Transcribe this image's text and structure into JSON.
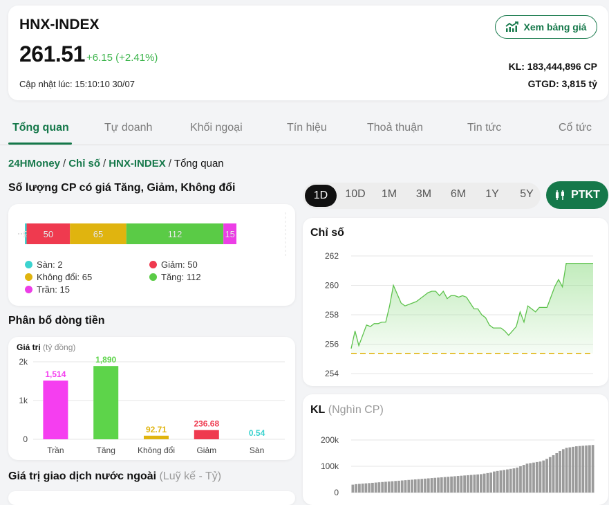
{
  "header": {
    "index_name": "HNX-INDEX",
    "value": "261.51",
    "change": "+6.15 (+2.41%)",
    "updated": "Cập nhật lúc: 15:10:10 30/07",
    "price_board_button": "Xem bảng giá",
    "volume": "KL: 183,444,896 CP",
    "value_traded": "GTGD: 3,815 tỷ"
  },
  "tabs": [
    "Tổng quan",
    "Tự doanh",
    "Khối ngoại",
    "Tín hiệu",
    "Thoả thuận",
    "Tin tức",
    "Cổ tức"
  ],
  "breadcrumb": {
    "items": [
      "24HMoney",
      "Chỉ số",
      "HNX-INDEX"
    ],
    "current": "Tổng quan"
  },
  "breadth": {
    "title": "Số lượng CP có giá Tăng, Giảm, Không đổi",
    "segments": [
      {
        "key": "san",
        "label": "Sàn",
        "count": 2,
        "color": "#3cd3cf"
      },
      {
        "key": "giam",
        "label": "Giảm",
        "count": 50,
        "color": "#ef3a4f"
      },
      {
        "key": "khongdoi",
        "label": "Không đổi",
        "count": 65,
        "color": "#e0b40f"
      },
      {
        "key": "tang",
        "label": "Tăng",
        "count": 112,
        "color": "#5acb46"
      },
      {
        "key": "tran",
        "label": "Trần",
        "count": 15,
        "color": "#ec3ee6"
      }
    ],
    "legend": {
      "san": "Sàn: 2",
      "giam": "Giảm: 50",
      "khongdoi": "Không đổi: 65",
      "tang": "Tăng: 112",
      "tran": "Trần: 15"
    }
  },
  "flow": {
    "title": "Phân bổ dòng tiền",
    "ylabel": "Giá trị",
    "yunit": "(tỷ đồng)"
  },
  "foreign": {
    "title": "Giá trị giao dịch nước ngoài",
    "suffix": "(Luỹ kế - Tỷ)"
  },
  "range": {
    "options": [
      "1D",
      "10D",
      "1M",
      "3M",
      "6M",
      "1Y",
      "5Y"
    ],
    "selected": "1D",
    "ptkt": "PTKT"
  },
  "index_chart_title": "Chỉ số",
  "volume_chart": {
    "title": "KL",
    "unit": "(Nghìn CP)"
  },
  "colors": {
    "brand": "#15784a",
    "up": "#3cb44b"
  },
  "chart_data": [
    {
      "type": "bar",
      "title": "Phân bổ dòng tiền",
      "ylabel": "Giá trị (tỷ đồng)",
      "categories": [
        "Trần",
        "Tăng",
        "Không đổi",
        "Giảm",
        "Sàn"
      ],
      "values": [
        1514,
        1890,
        92.71,
        236.68,
        0.54
      ],
      "value_labels": [
        "1,514",
        "1,890",
        "92.71",
        "236.68",
        "0.54"
      ],
      "colors": [
        "#f53ef0",
        "#5dd44a",
        "#e0b40f",
        "#ef3a4f",
        "#3cd3cf"
      ],
      "yticks": [
        "0",
        "1k",
        "2k"
      ],
      "ylim": [
        0,
        2000
      ]
    },
    {
      "type": "area",
      "title": "Chỉ số",
      "ylim": [
        254,
        262
      ],
      "yticks": [
        "254",
        "256",
        "258",
        "260",
        "262"
      ],
      "reference": 255.36,
      "values": [
        255.7,
        256.9,
        255.9,
        256.6,
        257.3,
        257.2,
        257.4,
        257.4,
        257.5,
        257.5,
        258.6,
        260.0,
        259.4,
        258.8,
        258.6,
        258.7,
        258.8,
        258.9,
        259.1,
        259.3,
        259.5,
        259.6,
        259.6,
        259.3,
        259.6,
        259.1,
        259.3,
        259.3,
        259.2,
        259.3,
        259.2,
        258.8,
        258.4,
        258.4,
        258.0,
        257.8,
        257.3,
        257.1,
        257.1,
        257.1,
        256.9,
        256.6,
        256.9,
        257.2,
        258.2,
        257.5,
        258.6,
        258.4,
        258.2,
        258.5,
        258.5,
        258.5,
        259.2,
        259.9,
        260.4,
        259.9,
        261.5,
        261.5,
        261.5,
        261.5,
        261.5,
        261.5,
        261.5,
        261.5
      ]
    },
    {
      "type": "bar",
      "title": "KL",
      "ylabel": "(Nghìn CP)",
      "ylim": [
        0,
        200000
      ],
      "yticks": [
        "0",
        "100k",
        "200k"
      ],
      "values": [
        30000,
        32000,
        33000,
        34000,
        35000,
        36000,
        37000,
        38000,
        39000,
        40000,
        41000,
        42000,
        43000,
        44000,
        45000,
        46000,
        47000,
        48000,
        49000,
        50000,
        51000,
        52000,
        53000,
        54000,
        55000,
        56000,
        57000,
        58000,
        59000,
        60000,
        61000,
        62000,
        63000,
        64000,
        65000,
        66000,
        67000,
        68000,
        69000,
        70000,
        72000,
        74000,
        76000,
        80000,
        82000,
        84000,
        86000,
        88000,
        90000,
        92000,
        95000,
        100000,
        105000,
        110000,
        112000,
        114000,
        116000,
        118000,
        122000,
        128000,
        135000,
        142000,
        150000,
        158000,
        165000,
        170000,
        172000,
        174000,
        176000,
        177000,
        178000,
        179000,
        180000,
        181000
      ]
    }
  ]
}
